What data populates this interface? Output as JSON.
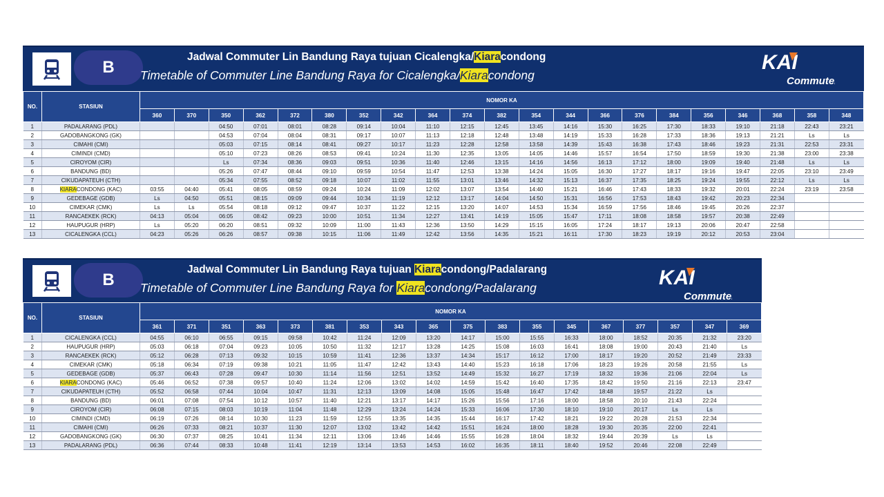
{
  "tables": [
    {
      "title_id_prefix": "Jadwal Commuter Lin Bandung Raya tujuan Cicalengka/",
      "title_id_hl": "Kiara",
      "title_id_suffix": "condong",
      "title_en_prefix": "Timetable of Commuter Line Bandung Raya for Cicalengka/",
      "title_en_hl": "Kiara",
      "title_en_suffix": "condong",
      "line_badge": "B",
      "logo_kai": "KAI",
      "logo_commuter": "Commuter",
      "col_no": "NO.",
      "col_stasiun": "STASIUN",
      "col_nomor": "NOMOR KA",
      "trains": [
        "360",
        "370",
        "350",
        "362",
        "372",
        "380",
        "352",
        "342",
        "364",
        "374",
        "382",
        "354",
        "344",
        "366",
        "376",
        "384",
        "356",
        "346",
        "368",
        "358",
        "348"
      ],
      "rows": [
        {
          "no": "1",
          "hl": "",
          "station": "PADALARANG (PDL)",
          "times": [
            "",
            "",
            "04:50",
            "07:01",
            "08:01",
            "08:28",
            "09:14",
            "10:04",
            "11:10",
            "12:15",
            "12:45",
            "13:45",
            "14:16",
            "15:30",
            "16:25",
            "17:30",
            "18:33",
            "19:10",
            "21:18",
            "22:43",
            "23:21"
          ]
        },
        {
          "no": "2",
          "hl": "",
          "station": "GADOBANGKONG (GK)",
          "times": [
            "",
            "",
            "04:53",
            "07:04",
            "08:04",
            "08:31",
            "09:17",
            "10:07",
            "11:13",
            "12:18",
            "12:48",
            "13:48",
            "14:19",
            "15:33",
            "16:28",
            "17:33",
            "18:36",
            "19:13",
            "21:21",
            "Ls",
            "Ls"
          ]
        },
        {
          "no": "3",
          "hl": "",
          "station": "CIMAHI (CMI)",
          "times": [
            "",
            "",
            "05:03",
            "07:15",
            "08:14",
            "08:41",
            "09:27",
            "10:17",
            "11:23",
            "12:28",
            "12:58",
            "13:58",
            "14:39",
            "15:43",
            "16:38",
            "17:43",
            "18:46",
            "19:23",
            "21:31",
            "22:53",
            "23:31"
          ]
        },
        {
          "no": "4",
          "hl": "",
          "station": "CIMINDI (CMD)",
          "times": [
            "",
            "",
            "05:10",
            "07:23",
            "08:26",
            "08:53",
            "09:41",
            "10:24",
            "11:30",
            "12:35",
            "13:05",
            "14:05",
            "14:46",
            "15:57",
            "16:54",
            "17:50",
            "18:59",
            "19:30",
            "21:38",
            "23:00",
            "23:38"
          ]
        },
        {
          "no": "5",
          "hl": "",
          "station": "CIROYOM (CIR)",
          "times": [
            "",
            "",
            "Ls",
            "07:34",
            "08:36",
            "09:03",
            "09:51",
            "10:36",
            "11:40",
            "12:46",
            "13:15",
            "14:16",
            "14:56",
            "16:13",
            "17:12",
            "18:00",
            "19:09",
            "19:40",
            "21:48",
            "Ls",
            "Ls"
          ]
        },
        {
          "no": "6",
          "hl": "",
          "station": "BANDUNG (BD)",
          "times": [
            "",
            "",
            "05:26",
            "07:47",
            "08:44",
            "09:10",
            "09:59",
            "10:54",
            "11:47",
            "12:53",
            "13:38",
            "14:24",
            "15:05",
            "16:30",
            "17:27",
            "18:17",
            "19:16",
            "19:47",
            "22:05",
            "23:10",
            "23:49"
          ]
        },
        {
          "no": "7",
          "hl": "",
          "station": "CIKUDAPATEUH (CTH)",
          "times": [
            "",
            "",
            "05:34",
            "07:55",
            "08:52",
            "09:18",
            "10:07",
            "11:02",
            "11:55",
            "13:01",
            "13:46",
            "14:32",
            "15:13",
            "16:37",
            "17:35",
            "18:25",
            "19:24",
            "19:55",
            "22:12",
            "Ls",
            "Ls"
          ]
        },
        {
          "no": "8",
          "hl": "KIARA",
          "station": "CONDONG (KAC)",
          "times": [
            "03:55",
            "04:40",
            "05:41",
            "08:05",
            "08:59",
            "09:24",
            "10:24",
            "11:09",
            "12:02",
            "13:07",
            "13:54",
            "14:40",
            "15:21",
            "16:46",
            "17:43",
            "18:33",
            "19:32",
            "20:01",
            "22:24",
            "23:19",
            "23:58"
          ]
        },
        {
          "no": "9",
          "hl": "",
          "station": "GEDEBAGE (GDB)",
          "times": [
            "Ls",
            "04:50",
            "05:51",
            "08:15",
            "09:09",
            "09:44",
            "10:34",
            "11:19",
            "12:12",
            "13:17",
            "14:04",
            "14:50",
            "15:31",
            "16:56",
            "17:53",
            "18:43",
            "19:42",
            "20:23",
            "22:34",
            "",
            ""
          ]
        },
        {
          "no": "10",
          "hl": "",
          "station": "CIMEKAR (CMK)",
          "times": [
            "Ls",
            "Ls",
            "05:54",
            "08:18",
            "09:12",
            "09:47",
            "10:37",
            "11:22",
            "12:15",
            "13:20",
            "14:07",
            "14:53",
            "15:34",
            "16:59",
            "17:56",
            "18:46",
            "19:45",
            "20:26",
            "22:37",
            "",
            ""
          ]
        },
        {
          "no": "11",
          "hl": "",
          "station": "RANCAEKEK (RCK)",
          "times": [
            "04:13",
            "05:04",
            "06:05",
            "08:42",
            "09:23",
            "10:00",
            "10:51",
            "11:34",
            "12:27",
            "13:41",
            "14:19",
            "15:05",
            "15:47",
            "17:11",
            "18:08",
            "18:58",
            "19:57",
            "20:38",
            "22:49",
            "",
            ""
          ]
        },
        {
          "no": "12",
          "hl": "",
          "station": "HAUPUGUR (HRP)",
          "times": [
            "Ls",
            "05:20",
            "06:20",
            "08:51",
            "09:32",
            "10:09",
            "11:00",
            "11:43",
            "12:36",
            "13:50",
            "14:29",
            "15:15",
            "16:05",
            "17:24",
            "18:17",
            "19:13",
            "20:06",
            "20:47",
            "22:58",
            "",
            ""
          ]
        },
        {
          "no": "13",
          "hl": "",
          "station": "CICALENGKA (CCL)",
          "times": [
            "04:23",
            "05:26",
            "06:26",
            "08:57",
            "09:38",
            "10:15",
            "11:06",
            "11:49",
            "12:42",
            "13:56",
            "14:35",
            "15:21",
            "16:11",
            "17:30",
            "18:23",
            "19:19",
            "20:12",
            "20:53",
            "23:04",
            "",
            ""
          ]
        }
      ]
    },
    {
      "title_id_prefix": "Jadwal Commuter Lin Bandung Raya tujuan ",
      "title_id_hl": "Kiara",
      "title_id_suffix": "condong/Padalarang",
      "title_en_prefix": "Timetable of Commuter Line Bandung Raya for ",
      "title_en_hl": "Kiara",
      "title_en_suffix": "condong/Padalarang",
      "line_badge": "B",
      "logo_kai": "KAI",
      "logo_commuter": "Commuter",
      "col_no": "NO.",
      "col_stasiun": "STASIUN",
      "col_nomor": "NOMOR KA",
      "trains": [
        "361",
        "371",
        "351",
        "363",
        "373",
        "381",
        "353",
        "343",
        "365",
        "375",
        "383",
        "355",
        "345",
        "367",
        "377",
        "357",
        "347",
        "369"
      ],
      "rows": [
        {
          "no": "1",
          "hl": "",
          "station": "CICALENGKA (CCL)",
          "times": [
            "04:55",
            "06:10",
            "06:55",
            "09:15",
            "09:58",
            "10:42",
            "11:24",
            "12:09",
            "13:20",
            "14:17",
            "15:00",
            "15:55",
            "16:33",
            "18:00",
            "18:52",
            "20:35",
            "21:32",
            "23:20"
          ]
        },
        {
          "no": "2",
          "hl": "",
          "station": "HAUPUGUR (HRP)",
          "times": [
            "05:03",
            "06:18",
            "07:04",
            "09:23",
            "10:05",
            "10:50",
            "11:32",
            "12:17",
            "13:28",
            "14:25",
            "15:08",
            "16:03",
            "16:41",
            "18:08",
            "19:00",
            "20:43",
            "21:40",
            "Ls"
          ]
        },
        {
          "no": "3",
          "hl": "",
          "station": "RANCAEKEK (RCK)",
          "times": [
            "05:12",
            "06:28",
            "07:13",
            "09:32",
            "10:15",
            "10:59",
            "11:41",
            "12:36",
            "13:37",
            "14:34",
            "15:17",
            "16:12",
            "17:00",
            "18:17",
            "19:20",
            "20:52",
            "21:49",
            "23:33"
          ]
        },
        {
          "no": "4",
          "hl": "",
          "station": "CIMEKAR (CMK)",
          "times": [
            "05:18",
            "06:34",
            "07:19",
            "09:38",
            "10:21",
            "11:05",
            "11:47",
            "12:42",
            "13:43",
            "14:40",
            "15:23",
            "16:18",
            "17:06",
            "18:23",
            "19:26",
            "20:58",
            "21:55",
            "Ls"
          ]
        },
        {
          "no": "5",
          "hl": "",
          "station": "GEDEBAGE (GDB)",
          "times": [
            "05:37",
            "06:43",
            "07:28",
            "09:47",
            "10:30",
            "11:14",
            "11:56",
            "12:51",
            "13:52",
            "14:49",
            "15:32",
            "16:27",
            "17:19",
            "18:32",
            "19:36",
            "21:06",
            "22:04",
            "Ls"
          ]
        },
        {
          "no": "6",
          "hl": "KIARA",
          "station": "CONDONG (KAC)",
          "times": [
            "05:46",
            "06:52",
            "07:38",
            "09:57",
            "10:40",
            "11:24",
            "12:06",
            "13:02",
            "14:02",
            "14:59",
            "15:42",
            "16:40",
            "17:35",
            "18:42",
            "19:50",
            "21:16",
            "22:13",
            "23:47"
          ]
        },
        {
          "no": "7",
          "hl": "",
          "station": "CIKUDAPATEUH (CTH)",
          "times": [
            "05:52",
            "06:58",
            "07:44",
            "10:04",
            "10:47",
            "11:31",
            "12:13",
            "13:09",
            "14:08",
            "15:05",
            "15:48",
            "16:47",
            "17:42",
            "18:48",
            "19:57",
            "21:22",
            "Ls",
            ""
          ]
        },
        {
          "no": "8",
          "hl": "",
          "station": "BANDUNG (BD)",
          "times": [
            "06:01",
            "07:08",
            "07:54",
            "10:12",
            "10:57",
            "11:40",
            "12:21",
            "13:17",
            "14:17",
            "15:26",
            "15:56",
            "17:16",
            "18:00",
            "18:58",
            "20:10",
            "21:43",
            "22:24",
            ""
          ]
        },
        {
          "no": "9",
          "hl": "",
          "station": "CIROYOM (CIR)",
          "times": [
            "06:08",
            "07:15",
            "08:03",
            "10:19",
            "11:04",
            "11:48",
            "12:29",
            "13:24",
            "14:24",
            "15:33",
            "16:06",
            "17:30",
            "18:10",
            "19:10",
            "20:17",
            "Ls",
            "Ls",
            ""
          ]
        },
        {
          "no": "10",
          "hl": "",
          "station": "CIMINDI (CMD)",
          "times": [
            "06:19",
            "07:26",
            "08:14",
            "10:30",
            "11:23",
            "11:59",
            "12:55",
            "13:35",
            "14:35",
            "15:44",
            "16:17",
            "17:42",
            "18:21",
            "19:22",
            "20:28",
            "21:53",
            "22:34",
            ""
          ]
        },
        {
          "no": "11",
          "hl": "",
          "station": "CIMAHI (CMI)",
          "times": [
            "06:26",
            "07:33",
            "08:21",
            "10:37",
            "11:30",
            "12:07",
            "13:02",
            "13:42",
            "14:42",
            "15:51",
            "16:24",
            "18:00",
            "18:28",
            "19:30",
            "20:35",
            "22:00",
            "22:41",
            ""
          ]
        },
        {
          "no": "12",
          "hl": "",
          "station": "GADOBANGKONG (GK)",
          "times": [
            "06:30",
            "07:37",
            "08:25",
            "10:41",
            "11:34",
            "12:11",
            "13:06",
            "13:46",
            "14:46",
            "15:55",
            "16:28",
            "18:04",
            "18:32",
            "19:44",
            "20:39",
            "Ls",
            "Ls",
            ""
          ]
        },
        {
          "no": "13",
          "hl": "",
          "station": "PADALARANG (PDL)",
          "times": [
            "06:36",
            "07:44",
            "08:33",
            "10:48",
            "11:41",
            "12:19",
            "13:14",
            "13:53",
            "14:53",
            "16:02",
            "16:35",
            "18:11",
            "18:40",
            "19:52",
            "20:46",
            "22:08",
            "22:49",
            ""
          ]
        }
      ]
    }
  ]
}
